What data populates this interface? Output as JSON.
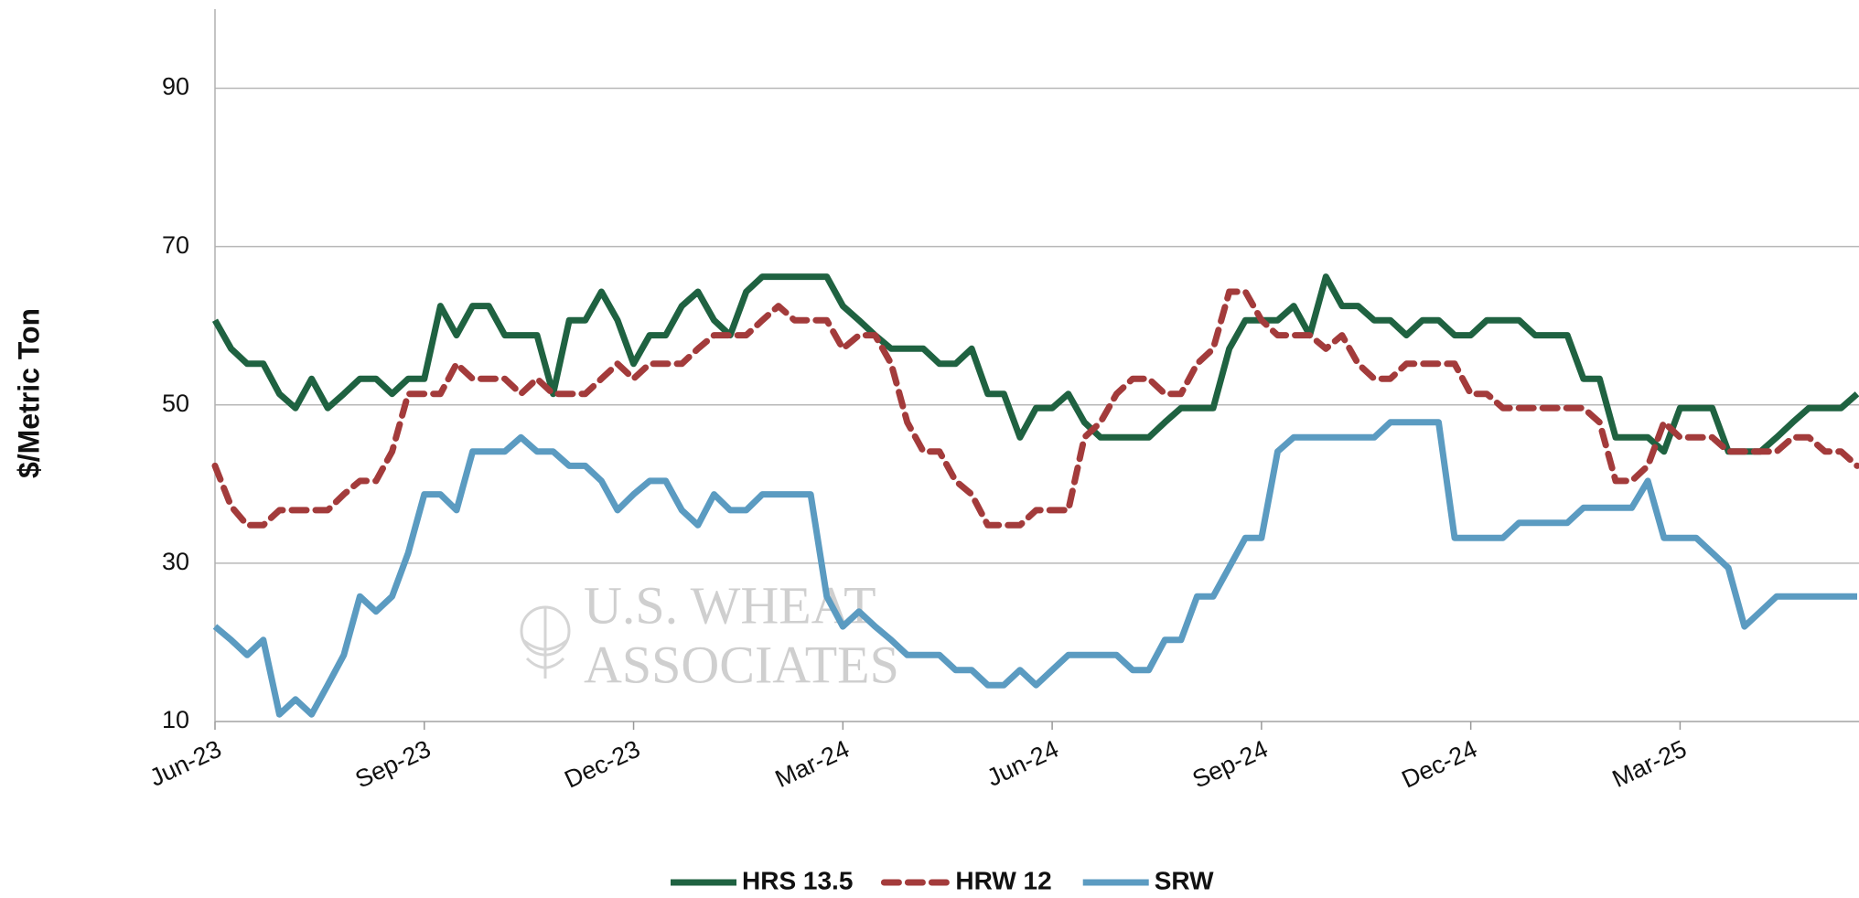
{
  "chart_data": {
    "type": "line",
    "y_label": "$/Metric Ton",
    "watermark": [
      "U.S. WHEAT",
      "ASSOCIATES"
    ],
    "categories": [
      "Jun-23",
      null,
      null,
      null,
      null,
      null,
      null,
      null,
      null,
      null,
      null,
      null,
      null,
      "Sep-23",
      null,
      null,
      null,
      null,
      null,
      null,
      null,
      null,
      null,
      null,
      null,
      null,
      "Dec-23",
      null,
      null,
      null,
      null,
      null,
      null,
      null,
      null,
      null,
      null,
      null,
      null,
      "Mar-24",
      null,
      null,
      null,
      null,
      null,
      null,
      null,
      null,
      null,
      null,
      null,
      null,
      "Jun-24",
      null,
      null,
      null,
      null,
      null,
      null,
      null,
      null,
      null,
      null,
      null,
      null,
      "Sep-24",
      null,
      null,
      null,
      null,
      null,
      null,
      null,
      null,
      null,
      null,
      null,
      null,
      "Dec-24",
      null,
      null,
      null,
      null,
      null,
      null,
      null,
      null,
      null,
      null,
      null,
      null,
      "Mar-25",
      null,
      null,
      null,
      null,
      null,
      null,
      null,
      null,
      null,
      null,
      null
    ],
    "ylim": [
      10,
      100
    ],
    "yticks": [
      10,
      30,
      50,
      70,
      90
    ],
    "grid": true,
    "legend": "bottom",
    "series": [
      {
        "name": "HRS 13.5",
        "color": "#1f6241",
        "dash": "solid",
        "values": [
          60.7,
          57.1,
          55.2,
          55.2,
          51.4,
          49.6,
          53.3,
          49.6,
          51.4,
          53.3,
          53.3,
          51.4,
          53.3,
          53.3,
          62.5,
          58.8,
          62.5,
          62.5,
          58.8,
          58.8,
          58.8,
          51.4,
          60.7,
          60.7,
          64.3,
          60.7,
          55.2,
          58.8,
          58.8,
          62.5,
          64.3,
          60.7,
          58.8,
          64.3,
          66.2,
          66.2,
          66.2,
          66.2,
          66.2,
          62.5,
          60.7,
          58.8,
          57.1,
          57.1,
          57.1,
          55.2,
          55.2,
          57.1,
          51.4,
          51.4,
          45.9,
          49.6,
          49.6,
          51.4,
          47.8,
          45.9,
          45.9,
          45.9,
          45.9,
          47.8,
          49.6,
          49.6,
          49.6,
          57.1,
          60.7,
          60.7,
          60.7,
          62.5,
          58.8,
          66.2,
          62.5,
          62.5,
          60.7,
          60.7,
          58.8,
          60.7,
          60.7,
          58.8,
          58.8,
          60.7,
          60.7,
          60.7,
          58.8,
          58.8,
          58.8,
          53.3,
          53.3,
          45.9,
          45.9,
          45.9,
          44.1,
          49.6,
          49.6,
          49.6,
          44.1,
          44.1,
          44.1,
          45.9,
          47.8,
          49.6,
          49.6,
          49.6,
          51.4
        ]
      },
      {
        "name": "HRW 12",
        "color": "#a33b3b",
        "dash": "dashed",
        "values": [
          42.3,
          37.2,
          34.8,
          34.8,
          36.7,
          36.7,
          36.7,
          36.7,
          38.7,
          40.4,
          40.4,
          44.1,
          51.4,
          51.4,
          51.4,
          55.2,
          53.3,
          53.3,
          53.3,
          51.4,
          53.3,
          51.4,
          51.4,
          51.4,
          53.3,
          55.2,
          53.3,
          55.2,
          55.2,
          55.2,
          57.1,
          58.8,
          58.8,
          58.8,
          60.7,
          62.5,
          60.7,
          60.7,
          60.7,
          57.1,
          58.8,
          58.8,
          55.2,
          47.8,
          44.1,
          44.1,
          40.4,
          38.7,
          34.8,
          34.8,
          34.8,
          36.7,
          36.7,
          36.7,
          45.9,
          47.8,
          51.4,
          53.3,
          53.3,
          51.4,
          51.4,
          55.2,
          57.1,
          64.3,
          64.3,
          60.7,
          58.8,
          58.8,
          58.8,
          57.1,
          58.8,
          55.2,
          53.3,
          53.3,
          55.2,
          55.2,
          55.2,
          55.2,
          51.4,
          51.4,
          49.6,
          49.6,
          49.6,
          49.6,
          49.6,
          49.6,
          47.8,
          40.4,
          40.4,
          42.3,
          47.8,
          45.9,
          45.9,
          45.9,
          44.1,
          44.1,
          44.1,
          44.1,
          45.9,
          45.9,
          44.1,
          44.1,
          42.3
        ]
      },
      {
        "name": "SRW",
        "color": "#5b9bc1",
        "dash": "solid",
        "values": [
          22.0,
          20.3,
          18.4,
          20.3,
          10.9,
          12.8,
          10.9,
          14.6,
          18.4,
          25.8,
          23.9,
          25.8,
          31.3,
          38.7,
          38.7,
          36.7,
          44.1,
          44.1,
          44.1,
          45.9,
          44.1,
          44.1,
          42.3,
          42.3,
          40.4,
          36.7,
          38.7,
          40.4,
          40.4,
          36.7,
          34.8,
          38.7,
          36.7,
          36.7,
          38.7,
          38.7,
          38.7,
          38.7,
          25.8,
          22.0,
          23.9,
          22.0,
          20.3,
          18.4,
          18.4,
          18.4,
          16.5,
          16.5,
          14.6,
          14.6,
          16.5,
          14.6,
          16.5,
          18.4,
          18.4,
          18.4,
          18.4,
          16.5,
          16.5,
          20.3,
          20.3,
          25.8,
          25.8,
          29.5,
          33.2,
          33.2,
          44.1,
          45.9,
          45.9,
          45.9,
          45.9,
          45.9,
          45.9,
          47.8,
          47.8,
          47.8,
          47.8,
          33.2,
          33.2,
          33.2,
          33.2,
          35.1,
          35.1,
          35.1,
          35.1,
          37.0,
          37.0,
          37.0,
          37.0,
          40.4,
          33.2,
          33.2,
          33.2,
          31.3,
          29.4,
          22.0,
          23.9,
          25.8,
          25.8,
          25.8,
          25.8,
          25.8,
          25.8
        ]
      }
    ]
  }
}
